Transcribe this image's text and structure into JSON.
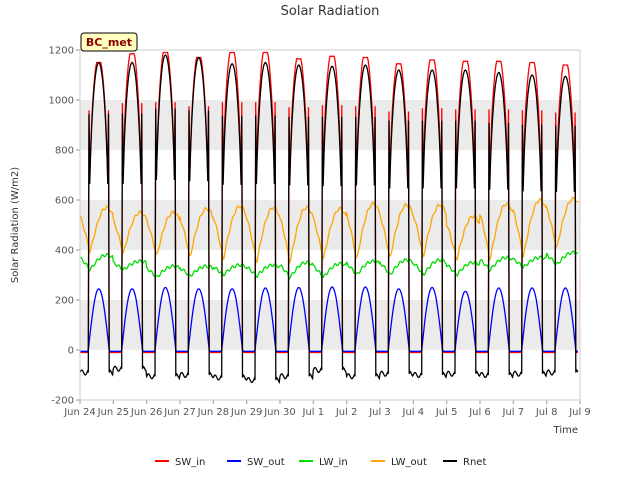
{
  "chart_data": {
    "type": "line",
    "title": "Solar Radiation",
    "xlabel": "Time",
    "ylabel": "Solar Radiation (W/m2)",
    "ylim": [
      -200,
      1200
    ],
    "xlim": [
      0,
      15
    ],
    "yticks": [
      -200,
      0,
      200,
      400,
      600,
      800,
      1000,
      1200
    ],
    "xticks": [
      "Jun 24",
      "Jun 25",
      "Jun 26",
      "Jun 27",
      "Jun 28",
      "Jun 29",
      "Jun 30",
      "Jul 1",
      "Jul 2",
      "Jul 3",
      "Jul 4",
      "Jul 5",
      "Jul 6",
      "Jul 7",
      "Jul 8",
      "Jul 9"
    ],
    "badge": "BC_met",
    "grid": "horizontal shaded bands",
    "legend_position": "bottom-center",
    "day_start_offset": 0.8,
    "days": 15,
    "sunrise_hour": 6,
    "sunset_hour": 21,
    "series": [
      {
        "name": "SW_in",
        "color": "#ff0000",
        "key": "sw_in",
        "daily_peak": [
          1150,
          1185,
          1190,
          1170,
          1190,
          1190,
          1165,
          1175,
          1170,
          1145,
          1160,
          1155,
          1155,
          1150,
          1140
        ],
        "night": -10
      },
      {
        "name": "SW_out",
        "color": "#0000ff",
        "key": "sw_out",
        "daily_peak": [
          245,
          245,
          250,
          245,
          245,
          248,
          250,
          252,
          252,
          245,
          250,
          235,
          248,
          248,
          248
        ],
        "night": -5
      },
      {
        "name": "LW_in",
        "color": "#00dd00",
        "key": "lw_in",
        "daily_low": [
          320,
          320,
          290,
          295,
          300,
          295,
          290,
          290,
          300,
          300,
          300,
          300,
          320,
          330,
          340
        ],
        "daily_high": [
          380,
          355,
          335,
          335,
          340,
          340,
          350,
          345,
          355,
          360,
          360,
          350,
          370,
          370,
          390
        ]
      },
      {
        "name": "LW_out",
        "color": "#ffa500",
        "key": "lw_out",
        "daily_low": [
          390,
          385,
          375,
          370,
          360,
          350,
          350,
          360,
          360,
          365,
          370,
          360,
          360,
          370,
          405
        ],
        "daily_high": [
          570,
          550,
          550,
          565,
          575,
          570,
          570,
          565,
          585,
          580,
          580,
          535,
          585,
          600,
          605
        ]
      },
      {
        "name": "Rnet",
        "color": "#000000",
        "key": "rnet",
        "daily_peak": [
          1150,
          1150,
          1180,
          1170,
          1145,
          1150,
          1140,
          1135,
          1140,
          1120,
          1120,
          1120,
          1110,
          1100,
          1095
        ],
        "daily_night": [
          -90,
          -75,
          -105,
          -100,
          -110,
          -120,
          -105,
          -80,
          -105,
          -95,
          -100,
          -95,
          -100,
          -95,
          -90
        ]
      }
    ]
  }
}
